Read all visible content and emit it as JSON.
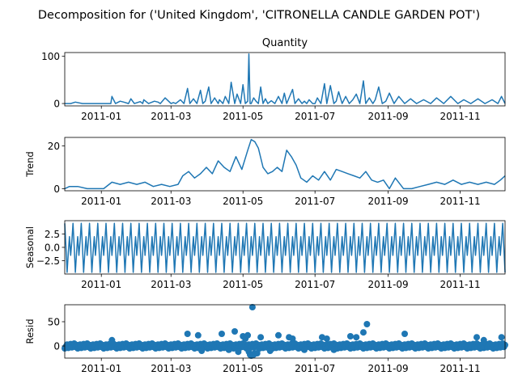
{
  "figure": {
    "suptitle": "Decomposition for ('United Kingdom', 'CITRONELLA CANDLE GARDEN POT')"
  },
  "chart_data": [
    {
      "type": "line",
      "title": "Quantity",
      "xlabel": "",
      "ylabel": "",
      "xlim": [
        "2010-12-01",
        "2011-12-09"
      ],
      "ylim": [
        -5,
        108
      ],
      "yticks": [
        0,
        100
      ],
      "xticks": [
        "2011-01",
        "2011-03",
        "2011-05",
        "2011-07",
        "2011-09",
        "2011-11"
      ],
      "series": [
        {
          "x": [
            "2010-12-01",
            "2010-12-06",
            "2010-12-10",
            "2010-12-16",
            "2010-12-21",
            "2011-01-05",
            "2011-01-09",
            "2011-01-10",
            "2011-01-13",
            "2011-01-17",
            "2011-01-20",
            "2011-01-24",
            "2011-01-26",
            "2011-01-29",
            "2011-02-03",
            "2011-02-05",
            "2011-02-06",
            "2011-02-10",
            "2011-02-15",
            "2011-02-18",
            "2011-02-20",
            "2011-02-24",
            "2011-03-01",
            "2011-03-03",
            "2011-03-05",
            "2011-03-09",
            "2011-03-12",
            "2011-03-15",
            "2011-03-17",
            "2011-03-20",
            "2011-03-23",
            "2011-03-26",
            "2011-03-28",
            "2011-03-30",
            "2011-04-02",
            "2011-04-04",
            "2011-04-07",
            "2011-04-10",
            "2011-04-11",
            "2011-04-14",
            "2011-04-16",
            "2011-04-19",
            "2011-04-21",
            "2011-04-24",
            "2011-04-26",
            "2011-04-29",
            "2011-05-01",
            "2011-05-03",
            "2011-05-05",
            "2011-05-06",
            "2011-05-07",
            "2011-05-08",
            "2011-05-10",
            "2011-05-12",
            "2011-05-14",
            "2011-05-16",
            "2011-05-18",
            "2011-05-20",
            "2011-05-22",
            "2011-05-25",
            "2011-05-28",
            "2011-05-31",
            "2011-06-03",
            "2011-06-05",
            "2011-06-07",
            "2011-06-09",
            "2011-06-12",
            "2011-06-14",
            "2011-06-17",
            "2011-06-20",
            "2011-06-22",
            "2011-06-24",
            "2011-06-26",
            "2011-06-29",
            "2011-07-01",
            "2011-07-03",
            "2011-07-06",
            "2011-07-09",
            "2011-07-11",
            "2011-07-14",
            "2011-07-17",
            "2011-07-19",
            "2011-07-21",
            "2011-07-24",
            "2011-07-27",
            "2011-07-30",
            "2011-08-02",
            "2011-08-05",
            "2011-08-08",
            "2011-08-11",
            "2011-08-13",
            "2011-08-16",
            "2011-08-19",
            "2011-08-21",
            "2011-08-24",
            "2011-08-27",
            "2011-08-30",
            "2011-09-02",
            "2011-09-06",
            "2011-09-10",
            "2011-09-15",
            "2011-09-20",
            "2011-09-25",
            "2011-10-01",
            "2011-10-07",
            "2011-10-12",
            "2011-10-18",
            "2011-10-24",
            "2011-10-30",
            "2011-11-04",
            "2011-11-10",
            "2011-11-16",
            "2011-11-22",
            "2011-11-28",
            "2011-12-03",
            "2011-12-06",
            "2011-12-09"
          ],
          "y": [
            0,
            0,
            3,
            0,
            0,
            0,
            0,
            15,
            0,
            5,
            3,
            0,
            10,
            0,
            4,
            0,
            8,
            0,
            5,
            3,
            0,
            12,
            0,
            2,
            0,
            8,
            0,
            32,
            0,
            10,
            0,
            28,
            0,
            5,
            35,
            0,
            12,
            0,
            8,
            0,
            15,
            0,
            45,
            0,
            20,
            0,
            40,
            0,
            5,
            105,
            0,
            0,
            12,
            5,
            0,
            35,
            0,
            10,
            0,
            6,
            0,
            15,
            0,
            22,
            0,
            12,
            30,
            0,
            10,
            0,
            5,
            0,
            8,
            0,
            0,
            12,
            0,
            42,
            0,
            38,
            0,
            5,
            25,
            0,
            15,
            0,
            8,
            20,
            0,
            48,
            0,
            12,
            0,
            8,
            35,
            0,
            5,
            22,
            0,
            15,
            0,
            10,
            0,
            8,
            0,
            12,
            0,
            15,
            0,
            8,
            0,
            10,
            0,
            8,
            0,
            15,
            0
          ]
        }
      ]
    },
    {
      "type": "line",
      "title": "",
      "xlabel": "",
      "ylabel": "Trend",
      "xlim": [
        "2010-12-01",
        "2011-12-09"
      ],
      "ylim": [
        -1,
        24
      ],
      "yticks": [
        0,
        20
      ],
      "xticks": [
        "2011-01",
        "2011-03",
        "2011-05",
        "2011-07",
        "2011-09",
        "2011-11"
      ],
      "series": [
        {
          "x": [
            "2010-12-01",
            "2010-12-05",
            "2010-12-12",
            "2010-12-20",
            "2010-12-27",
            "2011-01-03",
            "2011-01-10",
            "2011-01-17",
            "2011-01-24",
            "2011-01-31",
            "2011-02-07",
            "2011-02-14",
            "2011-02-21",
            "2011-02-28",
            "2011-03-07",
            "2011-03-11",
            "2011-03-16",
            "2011-03-21",
            "2011-03-26",
            "2011-03-31",
            "2011-04-05",
            "2011-04-10",
            "2011-04-15",
            "2011-04-20",
            "2011-04-25",
            "2011-04-30",
            "2011-05-05",
            "2011-05-08",
            "2011-05-11",
            "2011-05-14",
            "2011-05-18",
            "2011-05-22",
            "2011-05-26",
            "2011-05-30",
            "2011-06-03",
            "2011-06-07",
            "2011-06-11",
            "2011-06-15",
            "2011-06-19",
            "2011-06-24",
            "2011-06-29",
            "2011-07-04",
            "2011-07-09",
            "2011-07-14",
            "2011-07-19",
            "2011-07-24",
            "2011-07-29",
            "2011-08-03",
            "2011-08-08",
            "2011-08-13",
            "2011-08-18",
            "2011-08-23",
            "2011-08-28",
            "2011-09-02",
            "2011-09-07",
            "2011-09-14",
            "2011-09-21",
            "2011-09-28",
            "2011-10-05",
            "2011-10-12",
            "2011-10-19",
            "2011-10-26",
            "2011-11-02",
            "2011-11-09",
            "2011-11-16",
            "2011-11-23",
            "2011-11-30",
            "2011-12-05",
            "2011-12-09"
          ],
          "y": [
            0,
            1,
            1,
            0,
            0,
            0,
            3,
            2,
            3,
            2,
            3,
            1,
            2,
            1,
            2,
            6,
            8,
            5,
            7,
            10,
            7,
            13,
            10,
            8,
            15,
            9,
            18,
            23,
            22,
            19,
            10,
            7,
            8,
            10,
            8,
            18,
            15,
            11,
            5,
            3,
            6,
            4,
            8,
            4,
            9,
            8,
            7,
            6,
            5,
            8,
            4,
            3,
            4,
            0,
            5,
            0,
            0,
            1,
            2,
            3,
            2,
            4,
            2,
            3,
            2,
            3,
            2,
            4,
            6
          ]
        }
      ]
    },
    {
      "type": "line",
      "title": "",
      "xlabel": "",
      "ylabel": "Seasonal",
      "xlim": [
        "2010-12-01",
        "2011-12-09"
      ],
      "ylim": [
        -5,
        5
      ],
      "yticks": [
        -2.5,
        0.0,
        2.5
      ],
      "ytick_labels": [
        "−2.5",
        "0.0",
        "2.5"
      ],
      "xticks": [
        "2011-01",
        "2011-03",
        "2011-05",
        "2011-07",
        "2011-09",
        "2011-11"
      ],
      "period_days": 7,
      "series": [
        {
          "weekly_pattern": [
            4.5,
            0.0,
            -4.7,
            -1.0,
            2.0,
            -1.5,
            1.2
          ]
        }
      ]
    },
    {
      "type": "scatter",
      "title": "",
      "xlabel": "",
      "ylabel": "Resid",
      "xlim": [
        "2010-12-01",
        "2011-12-09"
      ],
      "ylim": [
        -25,
        85
      ],
      "yticks": [
        0,
        50
      ],
      "xticks": [
        "2011-01",
        "2011-03",
        "2011-05",
        "2011-07",
        "2011-09",
        "2011-11"
      ],
      "reference_line": 0,
      "series": [
        {
          "x": [
            "2011-01-10",
            "2011-03-15",
            "2011-03-24",
            "2011-03-27",
            "2011-04-13",
            "2011-04-19",
            "2011-04-24",
            "2011-04-27",
            "2011-05-01",
            "2011-05-03",
            "2011-05-05",
            "2011-05-06",
            "2011-05-07",
            "2011-05-08",
            "2011-05-09",
            "2011-05-10",
            "2011-05-11",
            "2011-05-13",
            "2011-05-16",
            "2011-05-24",
            "2011-05-31",
            "2011-06-09",
            "2011-06-12",
            "2011-06-22",
            "2011-07-07",
            "2011-07-11",
            "2011-07-17",
            "2011-07-31",
            "2011-08-05",
            "2011-08-11",
            "2011-08-14",
            "2011-09-15",
            "2011-11-15",
            "2011-11-21",
            "2011-12-06"
          ],
          "y": [
            12,
            25,
            22,
            -10,
            25,
            -8,
            30,
            -12,
            20,
            15,
            22,
            -12,
            -18,
            -20,
            80,
            -18,
            -15,
            -15,
            18,
            -10,
            22,
            18,
            15,
            -8,
            18,
            15,
            -8,
            20,
            18,
            28,
            45,
            25,
            18,
            12,
            18
          ]
        }
      ]
    }
  ]
}
